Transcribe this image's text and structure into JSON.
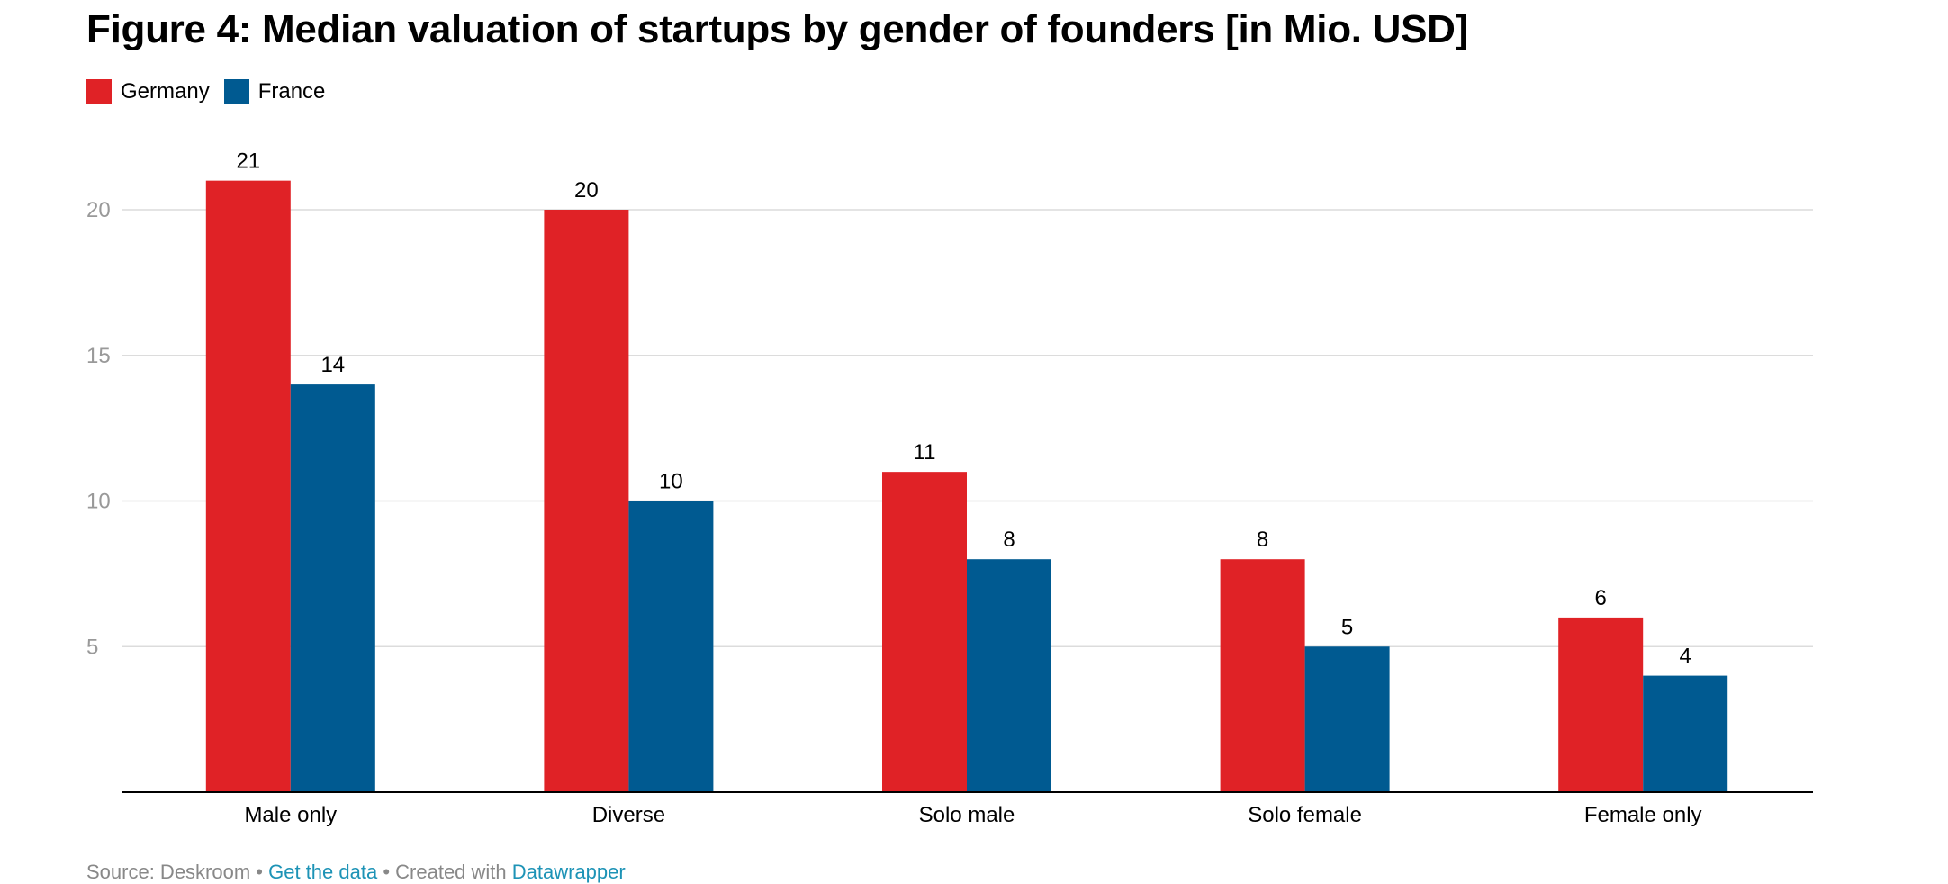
{
  "chart_data": {
    "type": "bar",
    "title": "Figure 4: Median valuation of startups by gender of founders [in Mio. USD]",
    "xlabel": "",
    "ylabel": "",
    "categories": [
      "Male only",
      "Diverse",
      "Solo male",
      "Solo female",
      "Female only"
    ],
    "series": [
      {
        "name": "Germany",
        "color": "#e02226",
        "values": [
          21,
          20,
          11,
          8,
          6
        ]
      },
      {
        "name": "France",
        "color": "#005a91",
        "values": [
          14,
          10,
          8,
          5,
          4
        ]
      }
    ],
    "ylim": [
      0,
      23.5
    ],
    "yticks": [
      "5",
      "10",
      "15",
      "20"
    ],
    "grid": true,
    "legend": "top-left",
    "data_labels": true
  },
  "footer": {
    "source": "Source: Deskroom",
    "sep1": " • ",
    "get_data": "Get the data",
    "sep2": " • Created with ",
    "tool": "Datawrapper"
  }
}
